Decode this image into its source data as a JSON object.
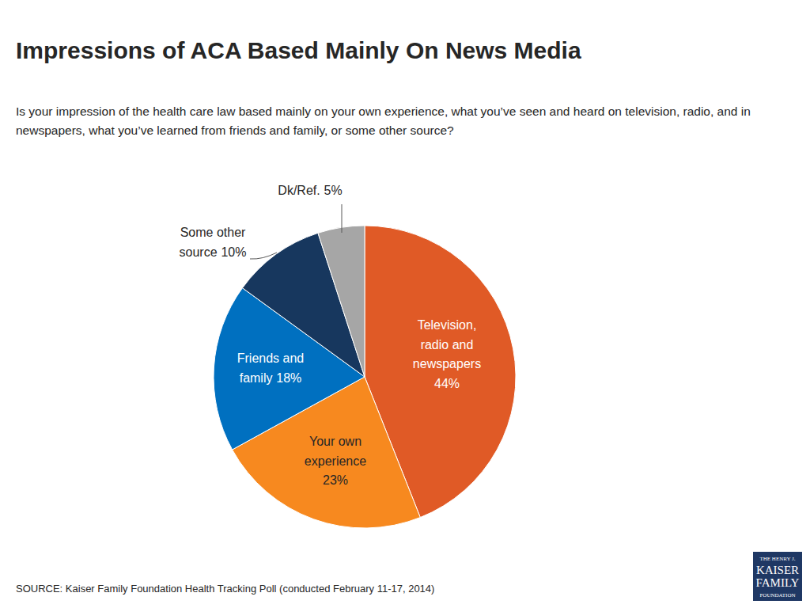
{
  "chart_data": {
    "type": "pie",
    "title": "Impressions of ACA Based Mainly On News Media",
    "subtitle": "Is your impression of the health care law based mainly on your own experience, what you’ve seen and heard on television, radio, and in newspapers, what you’ve learned from friends and family, or some other source?",
    "categories": [
      "Television, radio and newspapers",
      "Your own experience",
      "Friends and family",
      "Some other source",
      "Dk/Ref."
    ],
    "values": [
      44,
      23,
      18,
      10,
      5
    ],
    "value_labels": [
      "44%",
      "23%",
      "18%",
      "10%",
      "5%"
    ],
    "colors": [
      "#e05a26",
      "#f7891f",
      "#0070c0",
      "#17375e",
      "#a6a6a6"
    ],
    "data_labels": true,
    "source": "SOURCE: Kaiser Family Foundation Health Tracking Poll (conducted February 11-17, 2014)",
    "logo": [
      "THE HENRY J.",
      "KAISER",
      "FAMILY",
      "FOUNDATION"
    ]
  }
}
